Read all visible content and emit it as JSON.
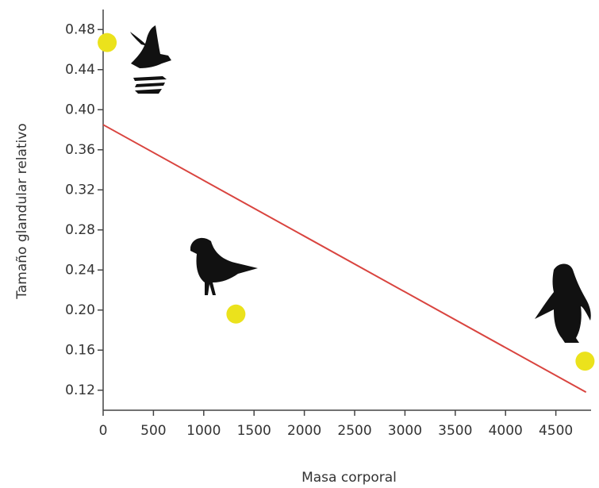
{
  "chart_data": {
    "type": "scatter",
    "x_label": "Masa corporal",
    "y_label": "Tamaño glandular relativo",
    "xlim": [
      0,
      4850
    ],
    "xticks": [
      0,
      500,
      1000,
      1500,
      2000,
      2500,
      3000,
      3500,
      4000,
      4500
    ],
    "ylim": [
      0.1,
      0.5
    ],
    "yticks": [
      0.12,
      0.16,
      {
        "value": 0.2,
        "label": "0.20"
      },
      0.24,
      0.28,
      0.32,
      0.36,
      {
        "value": 0.4,
        "label": "0.40"
      },
      0.44,
      0.48
    ],
    "series": [
      {
        "type": "line",
        "color": "#d9443f",
        "x": [
          0,
          4800
        ],
        "values": [
          0.385,
          0.118
        ]
      },
      {
        "type": "scatter",
        "color": "#ebe21c",
        "x": [
          40,
          1320,
          4790
        ],
        "values": [
          0.467,
          0.196,
          0.149
        ]
      }
    ]
  }
}
